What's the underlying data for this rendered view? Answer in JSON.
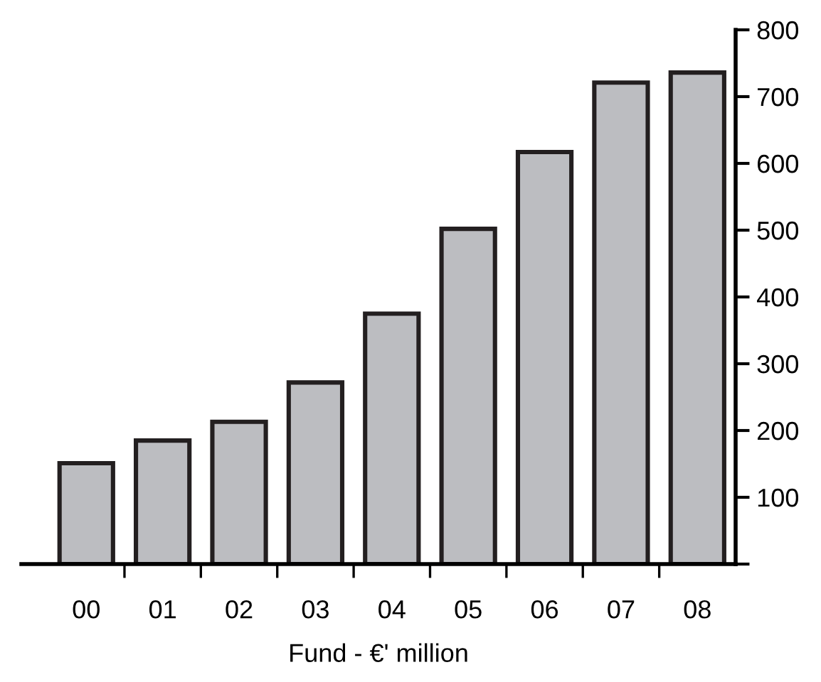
{
  "chart_data": {
    "type": "bar",
    "xlabel": "Fund - €' million",
    "categories": [
      "00",
      "01",
      "02",
      "03",
      "04",
      "05",
      "06",
      "07",
      "08"
    ],
    "values": [
      151,
      185,
      213,
      272,
      375,
      502,
      617,
      721,
      736
    ],
    "color": "#bcbdc1",
    "ylim": [
      0,
      800
    ],
    "yticks": [
      {
        "value": 0,
        "label": null
      },
      100,
      200,
      300,
      400,
      500,
      600,
      700,
      800
    ],
    "grid": false,
    "legend": false
  }
}
